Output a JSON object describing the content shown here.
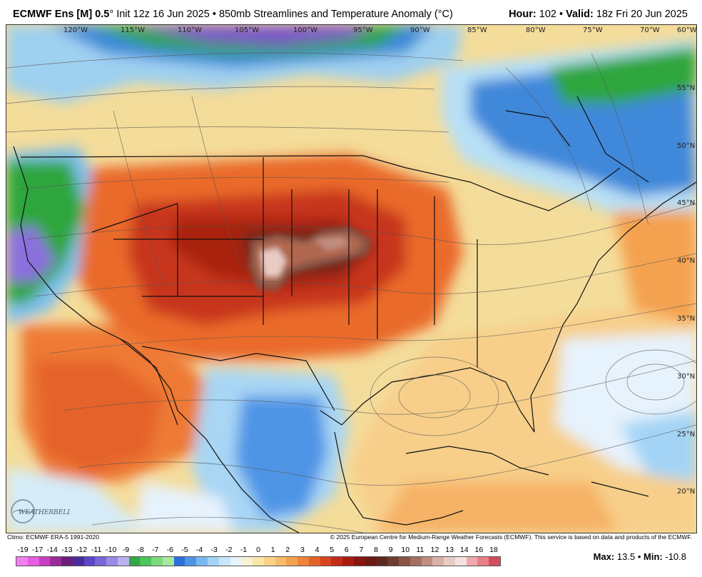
{
  "header": {
    "model": "ECMWF Ens [M] 0.5",
    "degree_symbol": "°",
    "init": "Init 12z 16 Jun 2025",
    "separator": "•",
    "product": "850mb Streamlines and Temperature Anomaly (°C)",
    "hour_label": "Hour:",
    "hour_value": "102",
    "valid_label": "Valid:",
    "valid_value": "18z Fri 20 Jun 2025"
  },
  "map": {
    "longitude_labels": [
      "120°W",
      "115°W",
      "110°W",
      "105°W",
      "100°W",
      "95°W",
      "90°W",
      "85°W",
      "80°W",
      "75°W",
      "70°W",
      "60°W"
    ],
    "latitude_labels": [
      "55°N",
      "50°N",
      "45°N",
      "40°N",
      "35°N",
      "30°N",
      "25°N",
      "20°N"
    ],
    "colors": {
      "warm_core": "#b1674f",
      "hot": "#c7361c",
      "warm": "#ea6a2a",
      "mild": "#f6b266",
      "cool": "#9fd3f0",
      "cold": "#3a88d8",
      "very_cold": "#22a43a",
      "purple": "#7a55c8"
    }
  },
  "footer": {
    "climo": "Climo: ECMWF ERA-5 1991-2020",
    "copyright": "© 2025 European Centre for Medium-Range Weather Forecasts (ECMWF). This service is based on data and products of the ECMWF."
  },
  "legend": {
    "labels": [
      "-19",
      "-17",
      "-14",
      "-13",
      "-12",
      "-11",
      "-10",
      "-9",
      "-8",
      "-7",
      "-6",
      "-5",
      "-4",
      "-3",
      "-2",
      "-1",
      "0",
      "1",
      "2",
      "3",
      "4",
      "5",
      "6",
      "7",
      "8",
      "9",
      "10",
      "11",
      "12",
      "13",
      "14",
      "16",
      "18"
    ],
    "colors": [
      "#f27ff0",
      "#e55fe0",
      "#c93bc4",
      "#9a2a9a",
      "#6a1f7a",
      "#4a2b9c",
      "#5d46c8",
      "#7a66d8",
      "#9a8ae6",
      "#b9b0f0",
      "#33a843",
      "#4cc45a",
      "#7fd97f",
      "#a8e8a0",
      "#2a70d8",
      "#4f95e6",
      "#78b8f0",
      "#a3d4f6",
      "#c8e6fa",
      "#e6f2fc",
      "#f7f2d2",
      "#f9e6a8",
      "#f9d288",
      "#f7bc6a",
      "#f4a250",
      "#ef8438",
      "#e5632a",
      "#d6441e",
      "#c32c16",
      "#a81c10",
      "#8a1410",
      "#6e1a14",
      "#5a2a22",
      "#6e3c30",
      "#8a5446",
      "#a57060",
      "#c08e80",
      "#d8b0a6",
      "#e8ccc4",
      "#f4e2de",
      "#f2a8b0",
      "#e88088",
      "#d05060"
    ]
  },
  "stats": {
    "max_label": "Max:",
    "max_value": "13.5",
    "min_label": "Min:",
    "min_value": "-10.8"
  },
  "logo": {
    "text": "WEATHERBELL"
  }
}
